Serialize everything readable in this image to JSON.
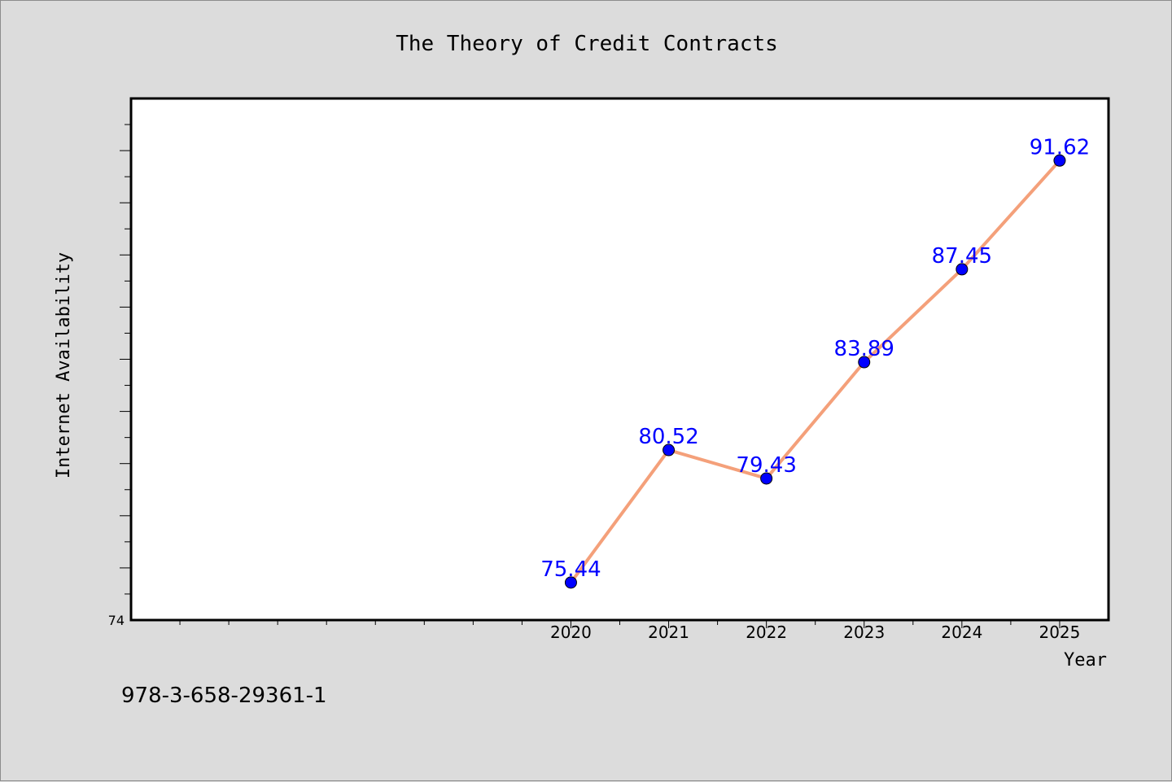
{
  "chart_data": {
    "type": "line",
    "title": "The Theory of Credit Contracts",
    "xlabel": "Year",
    "ylabel": "Internet Availability",
    "x": [
      2020,
      2021,
      2022,
      2023,
      2024,
      2025
    ],
    "series": [
      {
        "values": [
          75.44,
          80.52,
          79.43,
          83.89,
          87.45,
          91.62
        ],
        "data_labels": [
          "75.44",
          "80.52",
          "79.43",
          "83.89",
          "87.45",
          "91.62"
        ]
      }
    ],
    "x_tick_labels": [
      "2020",
      "2021",
      "2022",
      "2023",
      "2024",
      "2025"
    ],
    "y_tick_labels": [
      "74"
    ],
    "xlim": [
      2015.5,
      2025.5
    ],
    "ylim": [
      74,
      94
    ],
    "grid": false,
    "legend": "none",
    "colors": {
      "line": "#f4a07a",
      "marker": "#0000ff",
      "data_label": "#0000ff",
      "plot_background": "#ffffff",
      "page_background": "#dcdcdc"
    }
  },
  "footer": {
    "isbn": "978-3-658-29361-1"
  }
}
